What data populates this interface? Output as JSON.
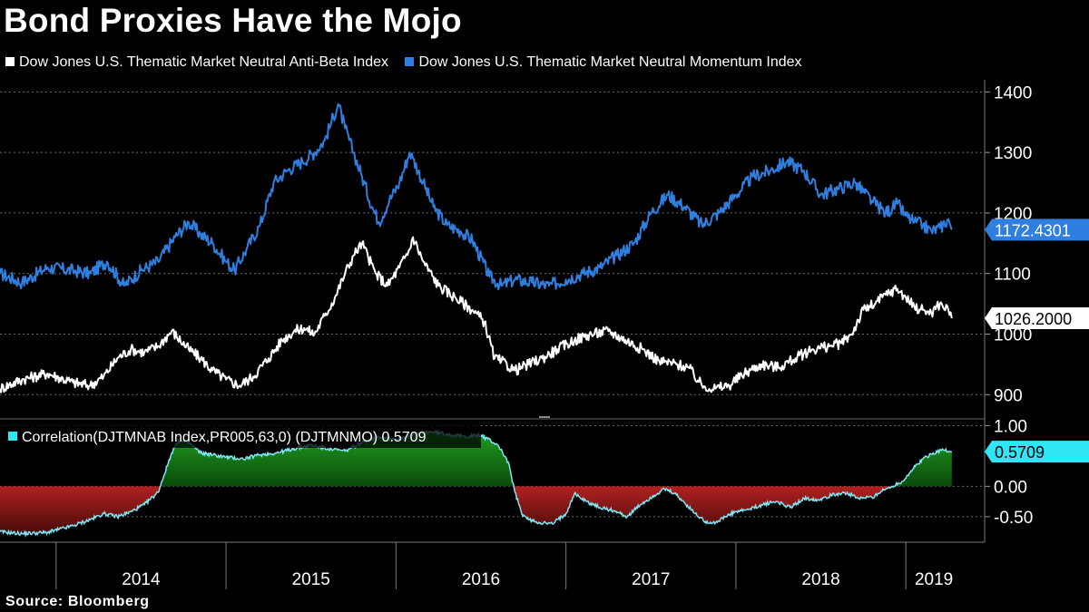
{
  "title": "Bond Proxies Have the Mojo",
  "legend": [
    {
      "label": "Dow Jones U.S. Thematic Market Neutral Anti-Beta Index",
      "color": "#ffffff"
    },
    {
      "label": "Dow Jones U.S. Thematic Market Neutral Momentum Index",
      "color": "#2f7fe0"
    }
  ],
  "source": "Source: Bloomberg",
  "colors": {
    "momentum": "#2f7fe0",
    "antibeta": "#ffffff",
    "corr_line": "#7fe6f2",
    "corr_pos": "#1f9a1f",
    "corr_neg": "#b02020",
    "tag_cyan": "#2ee6f5"
  },
  "chart_data": [
    {
      "type": "line",
      "title": "Bond Proxies Have the Mojo",
      "x_categories": [
        "2014",
        "2015",
        "2016",
        "2017",
        "2018",
        "2019"
      ],
      "x_range_years": [
        2013.67,
        2019.33
      ],
      "ylim": [
        860,
        1420
      ],
      "y_ticks": [
        "900",
        "1000",
        "1100",
        "1200",
        "1300",
        "1400"
      ],
      "y_tick_values": [
        900,
        1000,
        1100,
        1200,
        1300,
        1400
      ],
      "series": [
        {
          "name": "Dow Jones U.S. Thematic Market Neutral Momentum Index",
          "last_value_label": "1172.4301",
          "t": [
            2013.67,
            2013.8,
            2013.95,
            2014.1,
            2014.2,
            2014.3,
            2014.4,
            2014.5,
            2014.6,
            2014.7,
            2014.78,
            2014.85,
            2014.92,
            2015.0,
            2015.05,
            2015.12,
            2015.2,
            2015.28,
            2015.36,
            2015.45,
            2015.52,
            2015.58,
            2015.62,
            2015.66,
            2015.7,
            2015.75,
            2015.8,
            2015.86,
            2015.9,
            2015.96,
            2016.02,
            2016.08,
            2016.1,
            2016.16,
            2016.22,
            2016.3,
            2016.38,
            2016.45,
            2016.55,
            2016.62,
            2016.7,
            2016.8,
            2016.9,
            2017.0,
            2017.1,
            2017.2,
            2017.3,
            2017.4,
            2017.5,
            2017.6,
            2017.7,
            2017.8,
            2017.9,
            2018.0,
            2018.1,
            2018.2,
            2018.3,
            2018.4,
            2018.5,
            2018.6,
            2018.7,
            2018.8,
            2018.88,
            2018.95,
            2019.0,
            2019.05,
            2019.1,
            2019.15,
            2019.2,
            2019.25,
            2019.27
          ],
          "values": [
            1100,
            1085,
            1110,
            1105,
            1100,
            1120,
            1080,
            1105,
            1120,
            1160,
            1185,
            1165,
            1150,
            1120,
            1105,
            1140,
            1180,
            1250,
            1270,
            1285,
            1300,
            1320,
            1350,
            1380,
            1340,
            1300,
            1260,
            1210,
            1185,
            1220,
            1250,
            1300,
            1290,
            1250,
            1210,
            1180,
            1170,
            1155,
            1095,
            1080,
            1090,
            1085,
            1080,
            1090,
            1100,
            1110,
            1130,
            1150,
            1200,
            1230,
            1210,
            1180,
            1200,
            1230,
            1260,
            1270,
            1285,
            1270,
            1230,
            1240,
            1250,
            1220,
            1200,
            1215,
            1195,
            1185,
            1180,
            1170,
            1175,
            1190,
            1172.43
          ]
        },
        {
          "name": "Dow Jones U.S. Thematic Market Neutral Anti-Beta Index",
          "last_value_label": "1026.2000",
          "t": [
            2013.67,
            2013.8,
            2013.95,
            2014.1,
            2014.2,
            2014.28,
            2014.36,
            2014.44,
            2014.52,
            2014.6,
            2014.68,
            2014.78,
            2014.85,
            2014.92,
            2015.0,
            2015.08,
            2015.16,
            2015.25,
            2015.33,
            2015.4,
            2015.46,
            2015.52,
            2015.58,
            2015.64,
            2015.7,
            2015.75,
            2015.8,
            2015.88,
            2015.95,
            2016.02,
            2016.08,
            2016.1,
            2016.16,
            2016.25,
            2016.35,
            2016.45,
            2016.52,
            2016.58,
            2016.62,
            2016.7,
            2016.78,
            2016.86,
            2016.95,
            2017.05,
            2017.15,
            2017.25,
            2017.35,
            2017.45,
            2017.55,
            2017.65,
            2017.72,
            2017.8,
            2017.88,
            2017.96,
            2018.05,
            2018.15,
            2018.25,
            2018.35,
            2018.45,
            2018.55,
            2018.62,
            2018.68,
            2018.75,
            2018.82,
            2018.88,
            2018.95,
            2019.0,
            2019.05,
            2019.1,
            2019.15,
            2019.2,
            2019.25,
            2019.27
          ],
          "values": [
            910,
            925,
            935,
            920,
            915,
            930,
            960,
            975,
            970,
            980,
            1005,
            975,
            960,
            940,
            925,
            915,
            930,
            960,
            990,
            1005,
            1010,
            1000,
            1030,
            1060,
            1100,
            1130,
            1150,
            1100,
            1080,
            1110,
            1140,
            1160,
            1120,
            1080,
            1060,
            1040,
            1020,
            960,
            955,
            940,
            950,
            960,
            975,
            990,
            1000,
            1005,
            990,
            975,
            955,
            950,
            945,
            915,
            910,
            915,
            935,
            950,
            945,
            960,
            975,
            980,
            985,
            1000,
            1040,
            1050,
            1065,
            1075,
            1060,
            1045,
            1040,
            1035,
            1050,
            1040,
            1026.2
          ]
        }
      ]
    },
    {
      "type": "area",
      "title": "Correlation(DJTMNAB Index,PR005,63,0) (DJTMNMO) 0.5709",
      "legend_label": "Correlation(DJTMNAB Index,PR005,63,0) (DJTMNMO) 0.5709",
      "last_value_label": "0.5709",
      "ylim": [
        -0.92,
        1.08
      ],
      "y_ticks": [
        "1.00",
        "0.00",
        "-0.50"
      ],
      "y_tick_values": [
        1.0,
        0.0,
        -0.5
      ],
      "t": [
        2013.67,
        2013.8,
        2013.95,
        2014.1,
        2014.2,
        2014.28,
        2014.36,
        2014.44,
        2014.52,
        2014.6,
        2014.68,
        2014.72,
        2014.78,
        2014.85,
        2014.92,
        2015.0,
        2015.1,
        2015.2,
        2015.3,
        2015.4,
        2015.5,
        2015.6,
        2015.7,
        2015.8,
        2015.9,
        2016.0,
        2016.1,
        2016.2,
        2016.3,
        2016.4,
        2016.5,
        2016.6,
        2016.66,
        2016.7,
        2016.74,
        2016.78,
        2016.85,
        2016.92,
        2017.0,
        2017.05,
        2017.12,
        2017.2,
        2017.28,
        2017.36,
        2017.44,
        2017.52,
        2017.58,
        2017.64,
        2017.7,
        2017.76,
        2017.82,
        2017.88,
        2017.94,
        2018.0,
        2018.08,
        2018.16,
        2018.24,
        2018.32,
        2018.4,
        2018.48,
        2018.56,
        2018.64,
        2018.72,
        2018.8,
        2018.86,
        2018.92,
        2018.98,
        2019.04,
        2019.1,
        2019.16,
        2019.22,
        2019.27
      ],
      "values": [
        -0.75,
        -0.78,
        -0.76,
        -0.65,
        -0.55,
        -0.45,
        -0.5,
        -0.42,
        -0.3,
        -0.1,
        0.55,
        0.75,
        0.72,
        0.55,
        0.52,
        0.48,
        0.45,
        0.52,
        0.55,
        0.62,
        0.68,
        0.62,
        0.58,
        0.72,
        0.82,
        0.78,
        0.85,
        0.9,
        0.86,
        0.82,
        0.84,
        0.68,
        0.4,
        -0.1,
        -0.45,
        -0.55,
        -0.6,
        -0.62,
        -0.45,
        -0.12,
        -0.25,
        -0.35,
        -0.4,
        -0.5,
        -0.3,
        -0.15,
        -0.05,
        -0.12,
        -0.28,
        -0.45,
        -0.58,
        -0.6,
        -0.5,
        -0.42,
        -0.38,
        -0.3,
        -0.25,
        -0.35,
        -0.2,
        -0.22,
        -0.15,
        -0.1,
        -0.2,
        -0.18,
        -0.08,
        0.0,
        0.08,
        0.28,
        0.45,
        0.55,
        0.6,
        0.5709
      ]
    }
  ]
}
